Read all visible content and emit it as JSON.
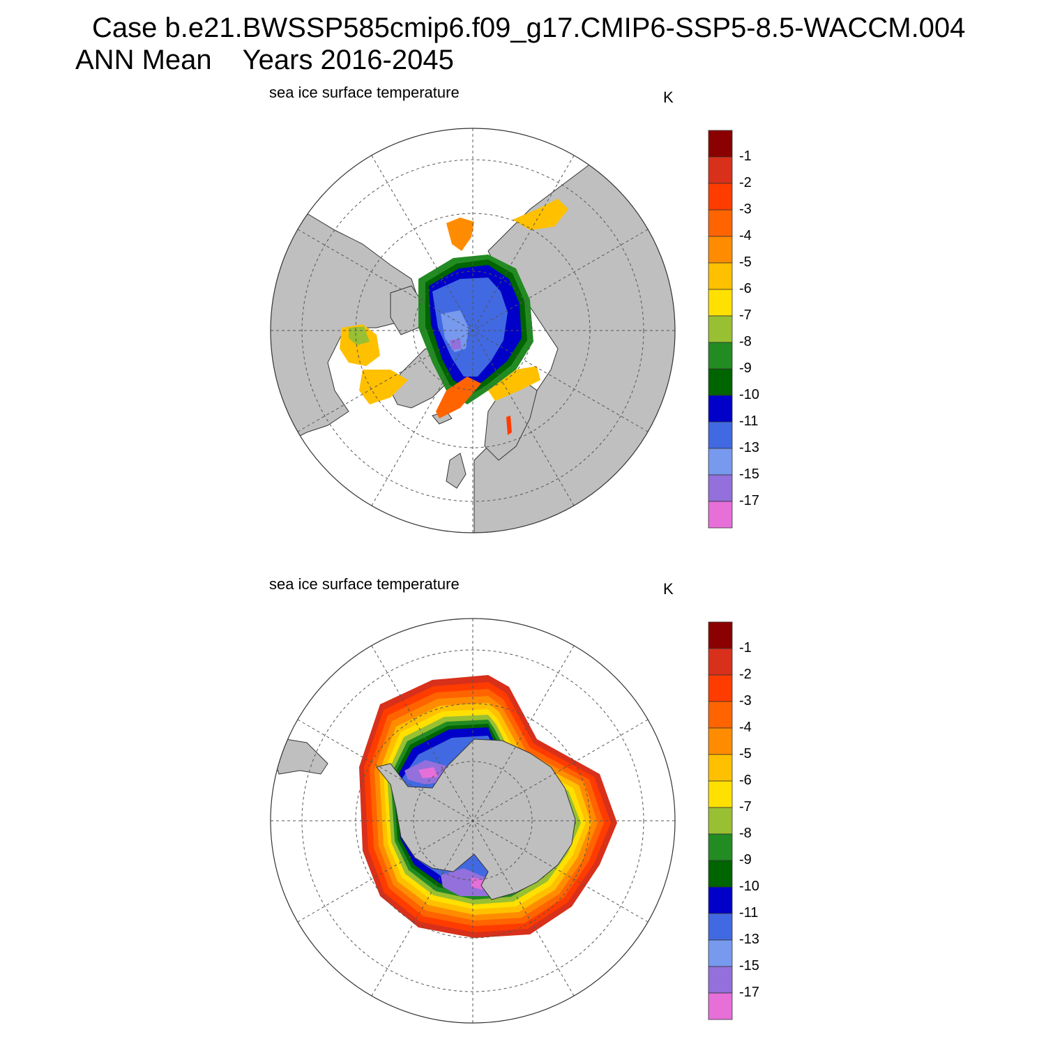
{
  "header": {
    "case_line": "Case b.e21.BWSSP585cmip6.f09_g17.CMIP6-SSP5-8.5-WACCM.004",
    "period": "ANN Mean",
    "years": "Years 2016-2045"
  },
  "panels": [
    {
      "id": "north",
      "hemisphere": "Northern Hemisphere",
      "label": "sea ice surface temperature",
      "units": "K"
    },
    {
      "id": "south",
      "hemisphere": "Southern Hemisphere",
      "label": "sea ice surface temperature",
      "units": "K"
    }
  ],
  "colorbar": {
    "labels": [
      "-1",
      "-2",
      "-3",
      "-4",
      "-5",
      "-6",
      "-7",
      "-8",
      "-9",
      "-10",
      "-11",
      "-13",
      "-15",
      "-17"
    ],
    "colors": [
      "#8b0000",
      "#d8301a",
      "#ff3c00",
      "#ff6400",
      "#ff8c00",
      "#ffc000",
      "#ffe000",
      "#99c032",
      "#228b22",
      "#006400",
      "#0000c8",
      "#4169e1",
      "#7799ee",
      "#9370db",
      "#e66fd8"
    ]
  },
  "colors": {
    "land": "#bfbfbf",
    "ocean": "#ffffff",
    "grid": "#555555"
  }
}
